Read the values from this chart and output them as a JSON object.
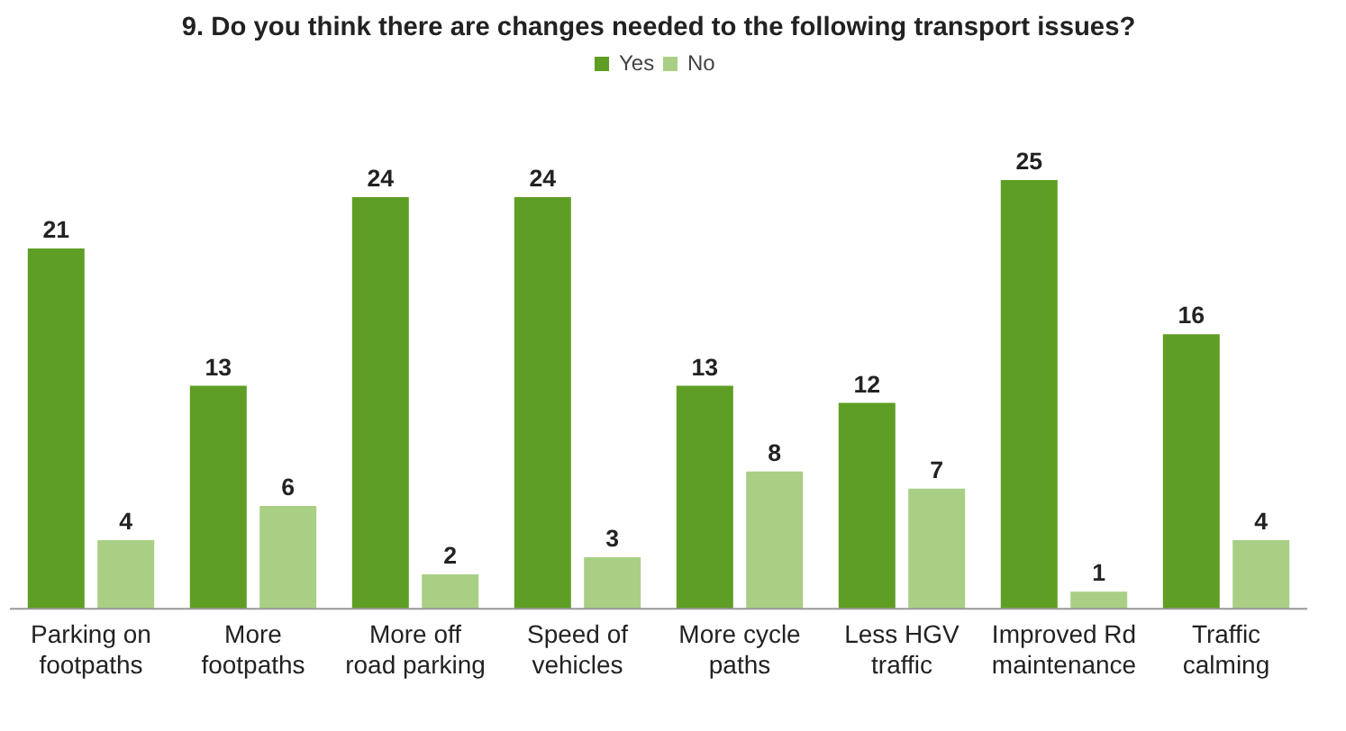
{
  "chart_data": {
    "type": "bar",
    "title": "9. Do you think there are changes needed to the following transport issues?",
    "categories": [
      "Parking on\nfootpaths",
      "More\nfootpaths",
      "More off\nroad parking",
      "Speed of\nvehicles",
      "More cycle\npaths",
      "Less HGV\ntraffic",
      "Improved Rd\nmaintenance",
      "Traffic\ncalming"
    ],
    "series": [
      {
        "name": "Yes",
        "color": "#5f9e24",
        "values": [
          21,
          13,
          24,
          24,
          13,
          12,
          25,
          16
        ]
      },
      {
        "name": "No",
        "color": "#a9cf84",
        "values": [
          4,
          6,
          2,
          3,
          8,
          7,
          1,
          4
        ]
      }
    ],
    "data_labels": true,
    "legend": "top",
    "grid": false
  }
}
